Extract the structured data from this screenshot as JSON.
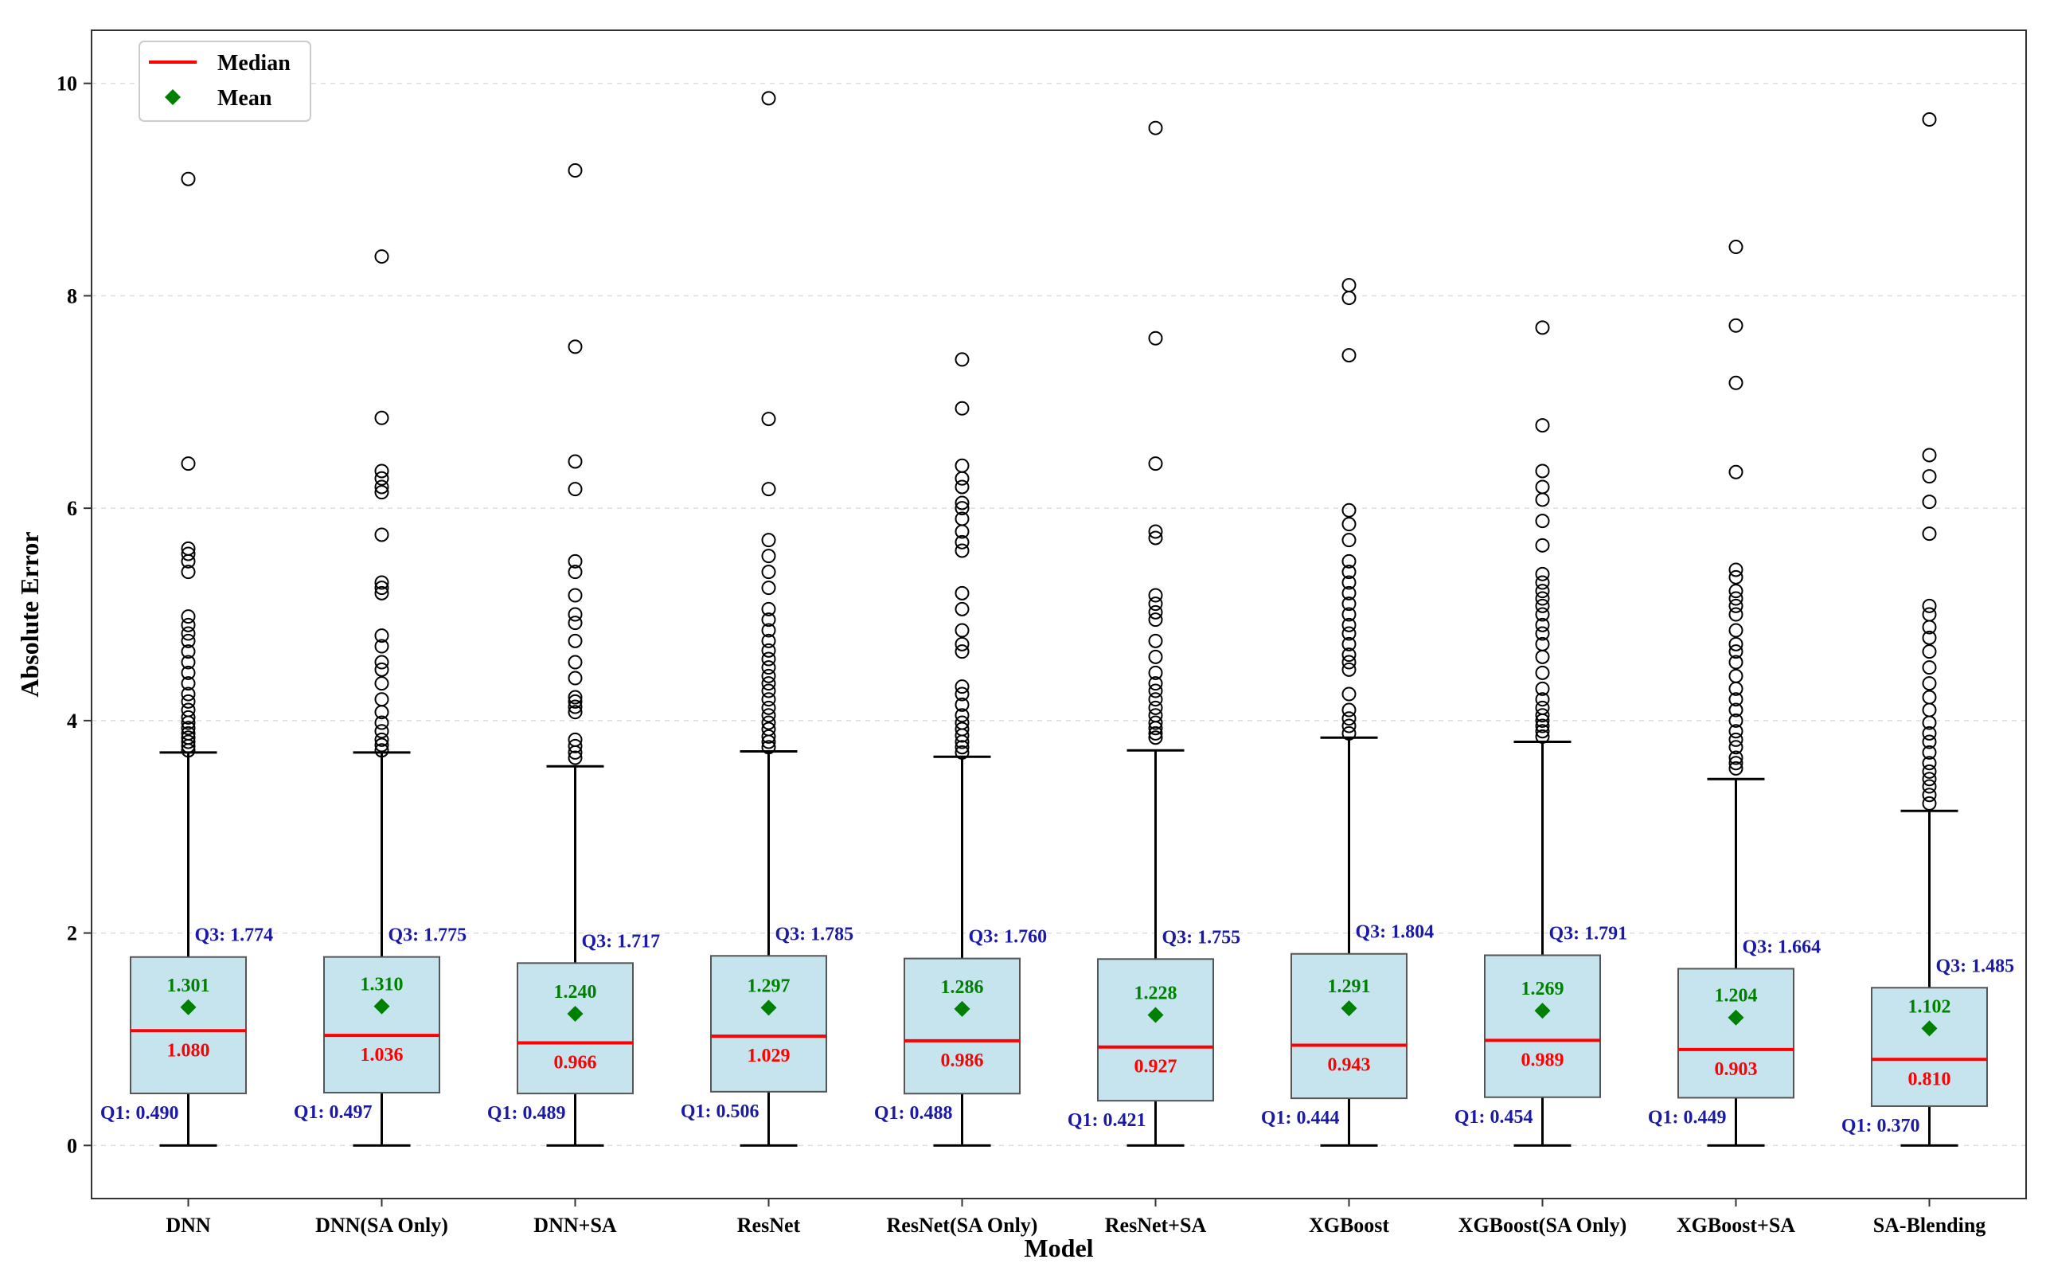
{
  "chart_data": {
    "type": "box",
    "xlabel": "Model",
    "ylabel": "Absolute Error",
    "ylim": [
      -0.5,
      10.5
    ],
    "yticks": [
      0,
      2,
      4,
      6,
      8,
      10
    ],
    "grid": "horizontal dashed",
    "legend_position": "top-left",
    "legend": [
      {
        "label": "Median",
        "marker": "line",
        "color": "#ff0000"
      },
      {
        "label": "Mean",
        "marker": "diamond",
        "color": "#008000"
      }
    ],
    "colors": {
      "box_fill": "#c5e4ee",
      "median": "#ff0000",
      "mean": "#008000",
      "quartile_text": "#1a1aa6",
      "whisker": "#000000"
    },
    "categories": [
      "DNN",
      "DNN(SA Only)",
      "DNN+SA",
      "ResNet",
      "ResNet(SA Only)",
      "ResNet+SA",
      "XGBoost",
      "XGBoost(SA Only)",
      "XGBoost+SA",
      "SA-Blending"
    ],
    "boxes": [
      {
        "name": "DNN",
        "q1": 0.49,
        "q1_label": "Q1: 0.490",
        "median": 1.08,
        "median_label": "1.080",
        "q3": 1.774,
        "q3_label": "Q3: 1.774",
        "mean": 1.301,
        "mean_label": "1.301",
        "whisker_low": 0.0,
        "whisker_high": 3.7,
        "outliers": [
          3.72,
          3.76,
          3.8,
          3.84,
          3.88,
          3.93,
          3.98,
          4.03,
          4.1,
          4.18,
          4.25,
          4.35,
          4.45,
          4.55,
          4.65,
          4.75,
          4.82,
          4.9,
          4.98,
          5.4,
          5.5,
          5.57,
          5.62,
          6.42,
          9.1
        ]
      },
      {
        "name": "DNN(SA Only)",
        "q1": 0.497,
        "q1_label": "Q1: 0.497",
        "median": 1.036,
        "median_label": "1.036",
        "q3": 1.775,
        "q3_label": "Q3: 1.775",
        "mean": 1.31,
        "mean_label": "1.310",
        "whisker_low": 0.0,
        "whisker_high": 3.7,
        "outliers": [
          3.72,
          3.77,
          3.82,
          3.9,
          3.98,
          4.08,
          4.2,
          4.35,
          4.48,
          4.55,
          4.7,
          4.8,
          5.2,
          5.25,
          5.3,
          5.75,
          6.15,
          6.2,
          6.28,
          6.35,
          6.85,
          8.37
        ]
      },
      {
        "name": "DNN+SA",
        "q1": 0.489,
        "q1_label": "Q1: 0.489",
        "median": 0.966,
        "median_label": "0.966",
        "q3": 1.717,
        "q3_label": "Q3: 1.717",
        "mean": 1.24,
        "mean_label": "1.240",
        "whisker_low": 0.0,
        "whisker_high": 3.57,
        "outliers": [
          3.65,
          3.7,
          3.76,
          3.82,
          4.08,
          4.13,
          4.18,
          4.22,
          4.4,
          4.55,
          4.75,
          4.92,
          5.0,
          5.18,
          5.4,
          5.5,
          6.18,
          6.44,
          7.52,
          9.18
        ]
      },
      {
        "name": "ResNet",
        "q1": 0.506,
        "q1_label": "Q1: 0.506",
        "median": 1.029,
        "median_label": "1.029",
        "q3": 1.785,
        "q3_label": "Q3: 1.785",
        "mean": 1.297,
        "mean_label": "1.297",
        "whisker_low": 0.0,
        "whisker_high": 3.71,
        "outliers": [
          3.75,
          3.8,
          3.85,
          3.92,
          3.98,
          4.05,
          4.12,
          4.2,
          4.28,
          4.35,
          4.42,
          4.5,
          4.58,
          4.66,
          4.75,
          4.85,
          4.95,
          5.05,
          5.25,
          5.4,
          5.55,
          5.7,
          6.18,
          6.84,
          9.86
        ]
      },
      {
        "name": "ResNet(SA Only)",
        "q1": 0.488,
        "q1_label": "Q1: 0.488",
        "median": 0.986,
        "median_label": "0.986",
        "q3": 1.76,
        "q3_label": "Q3: 1.760",
        "mean": 1.286,
        "mean_label": "1.286",
        "whisker_low": 0.0,
        "whisker_high": 3.66,
        "outliers": [
          3.7,
          3.75,
          3.8,
          3.86,
          3.92,
          3.98,
          4.05,
          4.15,
          4.25,
          4.32,
          4.65,
          4.72,
          4.85,
          5.05,
          5.2,
          5.6,
          5.68,
          5.78,
          5.9,
          6.0,
          6.05,
          6.2,
          6.28,
          6.4,
          6.94,
          7.4
        ]
      },
      {
        "name": "ResNet+SA",
        "q1": 0.421,
        "q1_label": "Q1: 0.421",
        "median": 0.927,
        "median_label": "0.927",
        "q3": 1.755,
        "q3_label": "Q3: 1.755",
        "mean": 1.228,
        "mean_label": "1.228",
        "whisker_low": 0.0,
        "whisker_high": 3.72,
        "outliers": [
          3.84,
          3.88,
          3.93,
          3.98,
          4.05,
          4.12,
          4.2,
          4.28,
          4.35,
          4.45,
          4.6,
          4.75,
          4.95,
          5.02,
          5.1,
          5.18,
          5.72,
          5.78,
          6.42,
          7.6,
          9.58
        ]
      },
      {
        "name": "XGBoost",
        "q1": 0.444,
        "q1_label": "Q1: 0.444",
        "median": 0.943,
        "median_label": "0.943",
        "q3": 1.804,
        "q3_label": "Q3: 1.804",
        "mean": 1.291,
        "mean_label": "1.291",
        "whisker_low": 0.0,
        "whisker_high": 3.84,
        "outliers": [
          3.88,
          3.95,
          4.02,
          4.1,
          4.25,
          4.48,
          4.55,
          4.62,
          4.72,
          4.82,
          4.9,
          5.0,
          5.1,
          5.2,
          5.3,
          5.4,
          5.5,
          5.7,
          5.85,
          5.98,
          7.44,
          7.98,
          8.1
        ]
      },
      {
        "name": "XGBoost(SA Only)",
        "q1": 0.454,
        "q1_label": "Q1: 0.454",
        "median": 0.989,
        "median_label": "0.989",
        "q3": 1.791,
        "q3_label": "Q3: 1.791",
        "mean": 1.269,
        "mean_label": "1.269",
        "whisker_low": 0.0,
        "whisker_high": 3.8,
        "outliers": [
          3.85,
          3.9,
          3.95,
          4.0,
          4.05,
          4.12,
          4.2,
          4.3,
          4.45,
          4.6,
          4.72,
          4.82,
          4.9,
          5.0,
          5.08,
          5.15,
          5.22,
          5.3,
          5.38,
          5.65,
          5.88,
          6.08,
          6.2,
          6.35,
          6.78,
          7.7
        ]
      },
      {
        "name": "XGBoost+SA",
        "q1": 0.449,
        "q1_label": "Q1: 0.449",
        "median": 0.903,
        "median_label": "0.903",
        "q3": 1.664,
        "q3_label": "Q3: 1.664",
        "mean": 1.204,
        "mean_label": "1.204",
        "whisker_low": 0.0,
        "whisker_high": 3.45,
        "outliers": [
          3.55,
          3.6,
          3.65,
          3.75,
          3.82,
          3.9,
          4.0,
          4.1,
          4.2,
          4.3,
          4.42,
          4.55,
          4.65,
          4.72,
          4.85,
          5.0,
          5.08,
          5.15,
          5.22,
          5.35,
          5.42,
          6.34,
          7.18,
          7.72,
          8.46
        ]
      },
      {
        "name": "SA-Blending",
        "q1": 0.37,
        "q1_label": "Q1: 0.370",
        "median": 0.81,
        "median_label": "0.810",
        "q3": 1.485,
        "q3_label": "Q3: 1.485",
        "mean": 1.102,
        "mean_label": "1.102",
        "whisker_low": 0.0,
        "whisker_high": 3.15,
        "outliers": [
          3.22,
          3.3,
          3.38,
          3.45,
          3.52,
          3.6,
          3.7,
          3.8,
          3.88,
          3.98,
          4.1,
          4.22,
          4.35,
          4.5,
          4.65,
          4.78,
          4.88,
          5.0,
          5.08,
          5.76,
          6.06,
          6.3,
          6.5,
          9.66
        ]
      }
    ]
  }
}
